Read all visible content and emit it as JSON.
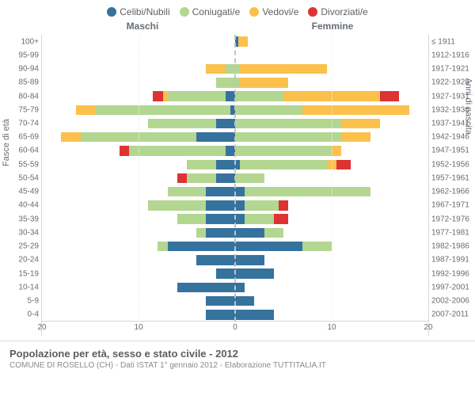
{
  "legend": [
    {
      "label": "Celibi/Nubili",
      "color": "#36729e"
    },
    {
      "label": "Coniugati/e",
      "color": "#b3d690"
    },
    {
      "label": "Vedovi/e",
      "color": "#fcc04c"
    },
    {
      "label": "Divorziati/e",
      "color": "#de3233"
    }
  ],
  "column_titles": {
    "left": "Maschi",
    "right": "Femmine"
  },
  "axis_titles": {
    "left_y": "Fasce di età",
    "right_y": "Anni di nascita"
  },
  "x": {
    "max": 20,
    "ticks": [
      20,
      10,
      0,
      10,
      20
    ]
  },
  "colors": {
    "celibi": "#36729e",
    "coniugati": "#b3d690",
    "vedovi": "#fcc04c",
    "divorziati": "#de3233",
    "grid": "#f0f0f0",
    "axis": "#d6d6d6",
    "center_dash": "#bfc3c6",
    "text": "#666d74"
  },
  "rows": [
    {
      "age": "100+",
      "birth": "≤ 1911",
      "m": {
        "cel": 0,
        "con": 0,
        "ved": 0,
        "div": 0
      },
      "f": {
        "cel": 0.3,
        "con": 0,
        "ved": 1,
        "div": 0
      }
    },
    {
      "age": "95-99",
      "birth": "1912-1916",
      "m": {
        "cel": 0,
        "con": 0,
        "ved": 0,
        "div": 0
      },
      "f": {
        "cel": 0,
        "con": 0,
        "ved": 0,
        "div": 0
      }
    },
    {
      "age": "90-94",
      "birth": "1917-1921",
      "m": {
        "cel": 0,
        "con": 1,
        "ved": 2,
        "div": 0
      },
      "f": {
        "cel": 0,
        "con": 0.5,
        "ved": 9,
        "div": 0
      }
    },
    {
      "age": "85-89",
      "birth": "1922-1926",
      "m": {
        "cel": 0,
        "con": 2,
        "ved": 0,
        "div": 0
      },
      "f": {
        "cel": 0,
        "con": 0.5,
        "ved": 5,
        "div": 0
      }
    },
    {
      "age": "80-84",
      "birth": "1927-1931",
      "m": {
        "cel": 1,
        "con": 6,
        "ved": 0.5,
        "div": 1
      },
      "f": {
        "cel": 0,
        "con": 5,
        "ved": 10,
        "div": 2
      }
    },
    {
      "age": "75-79",
      "birth": "1932-1936",
      "m": {
        "cel": 0.5,
        "con": 14,
        "ved": 2,
        "div": 0
      },
      "f": {
        "cel": 0,
        "con": 7,
        "ved": 11,
        "div": 0
      }
    },
    {
      "age": "70-74",
      "birth": "1937-1941",
      "m": {
        "cel": 2,
        "con": 7,
        "ved": 0,
        "div": 0
      },
      "f": {
        "cel": 0,
        "con": 11,
        "ved": 4,
        "div": 0
      }
    },
    {
      "age": "65-69",
      "birth": "1942-1946",
      "m": {
        "cel": 4,
        "con": 12,
        "ved": 2,
        "div": 0
      },
      "f": {
        "cel": 0,
        "con": 11,
        "ved": 3,
        "div": 0
      }
    },
    {
      "age": "60-64",
      "birth": "1947-1951",
      "m": {
        "cel": 1,
        "con": 10,
        "ved": 0,
        "div": 1
      },
      "f": {
        "cel": 0,
        "con": 10,
        "ved": 1,
        "div": 0
      }
    },
    {
      "age": "55-59",
      "birth": "1952-1956",
      "m": {
        "cel": 2,
        "con": 3,
        "ved": 0,
        "div": 0
      },
      "f": {
        "cel": 0.5,
        "con": 9,
        "ved": 1,
        "div": 1.5
      }
    },
    {
      "age": "50-54",
      "birth": "1957-1961",
      "m": {
        "cel": 2,
        "con": 3,
        "ved": 0,
        "div": 1
      },
      "f": {
        "cel": 0,
        "con": 3,
        "ved": 0,
        "div": 0
      }
    },
    {
      "age": "45-49",
      "birth": "1962-1966",
      "m": {
        "cel": 3,
        "con": 4,
        "ved": 0,
        "div": 0
      },
      "f": {
        "cel": 1,
        "con": 13,
        "ved": 0,
        "div": 0
      }
    },
    {
      "age": "40-44",
      "birth": "1967-1971",
      "m": {
        "cel": 3,
        "con": 6,
        "ved": 0,
        "div": 0
      },
      "f": {
        "cel": 1,
        "con": 3.5,
        "ved": 0,
        "div": 1
      }
    },
    {
      "age": "35-39",
      "birth": "1972-1976",
      "m": {
        "cel": 3,
        "con": 3,
        "ved": 0,
        "div": 0
      },
      "f": {
        "cel": 1,
        "con": 3,
        "ved": 0,
        "div": 1.5
      }
    },
    {
      "age": "30-34",
      "birth": "1977-1981",
      "m": {
        "cel": 3,
        "con": 1,
        "ved": 0,
        "div": 0
      },
      "f": {
        "cel": 3,
        "con": 2,
        "ved": 0,
        "div": 0
      }
    },
    {
      "age": "25-29",
      "birth": "1982-1986",
      "m": {
        "cel": 7,
        "con": 1,
        "ved": 0,
        "div": 0
      },
      "f": {
        "cel": 7,
        "con": 3,
        "ved": 0,
        "div": 0
      }
    },
    {
      "age": "20-24",
      "birth": "1987-1991",
      "m": {
        "cel": 4,
        "con": 0,
        "ved": 0,
        "div": 0
      },
      "f": {
        "cel": 3,
        "con": 0,
        "ved": 0,
        "div": 0
      }
    },
    {
      "age": "15-19",
      "birth": "1992-1996",
      "m": {
        "cel": 2,
        "con": 0,
        "ved": 0,
        "div": 0
      },
      "f": {
        "cel": 4,
        "con": 0,
        "ved": 0,
        "div": 0
      }
    },
    {
      "age": "10-14",
      "birth": "1997-2001",
      "m": {
        "cel": 6,
        "con": 0,
        "ved": 0,
        "div": 0
      },
      "f": {
        "cel": 1,
        "con": 0,
        "ved": 0,
        "div": 0
      }
    },
    {
      "age": "5-9",
      "birth": "2002-2006",
      "m": {
        "cel": 3,
        "con": 0,
        "ved": 0,
        "div": 0
      },
      "f": {
        "cel": 2,
        "con": 0,
        "ved": 0,
        "div": 0
      }
    },
    {
      "age": "0-4",
      "birth": "2007-2011",
      "m": {
        "cel": 3,
        "con": 0,
        "ved": 0,
        "div": 0
      },
      "f": {
        "cel": 4,
        "con": 0,
        "ved": 0,
        "div": 0
      }
    }
  ],
  "footer": {
    "title": "Popolazione per età, sesso e stato civile - 2012",
    "subtitle": "COMUNE DI ROSELLO (CH) - Dati ISTAT 1° gennaio 2012 - Elaborazione TUTTITALIA.IT"
  }
}
